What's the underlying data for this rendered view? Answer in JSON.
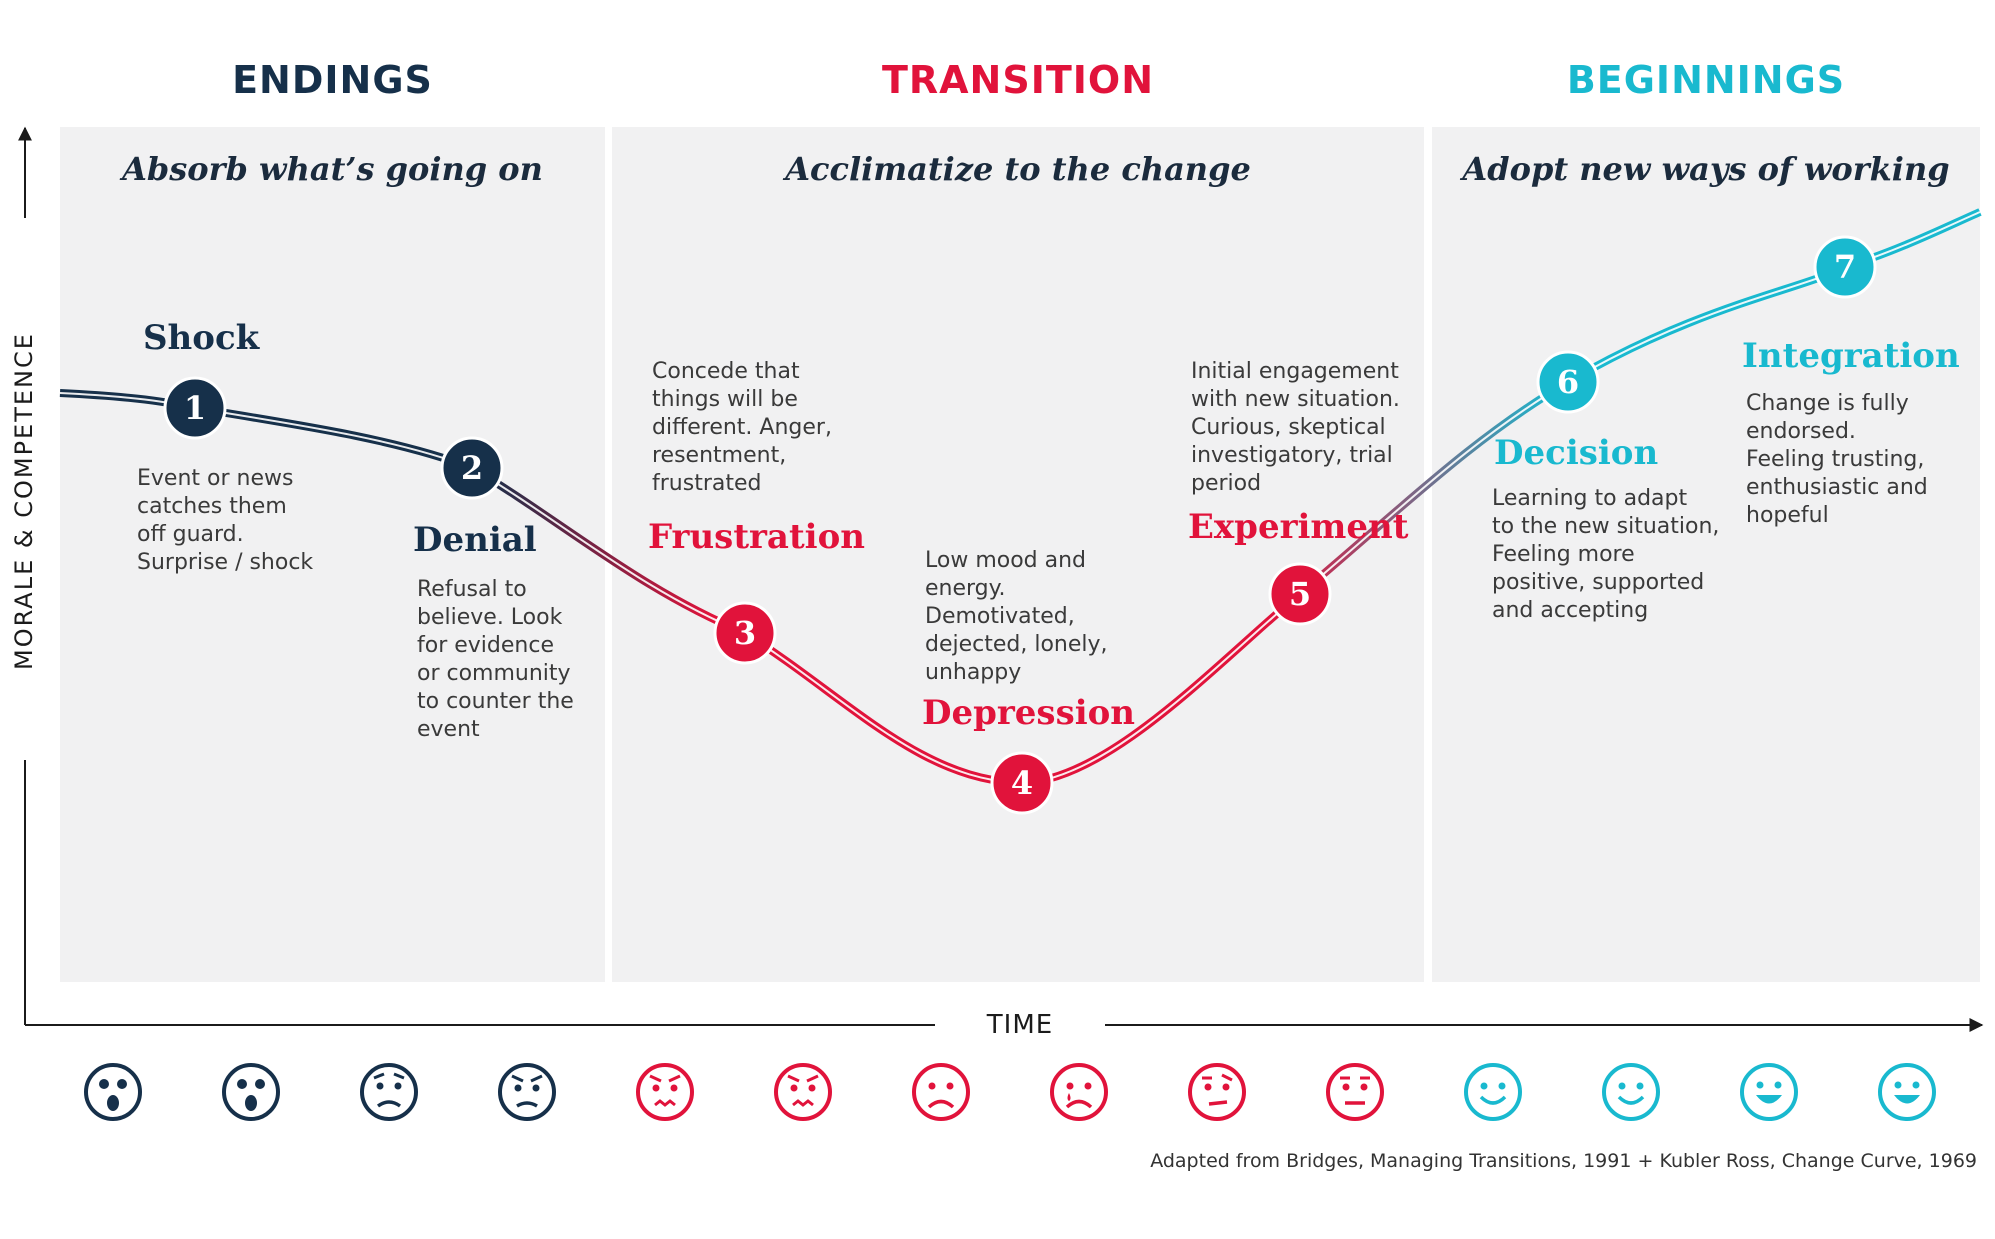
{
  "phases": [
    {
      "title": "ENDINGS",
      "subtitle": "Absorb what’s going on",
      "color": "#16304a"
    },
    {
      "title": "TRANSITION",
      "subtitle": "Acclimatize to the change",
      "color": "#e1133b"
    },
    {
      "title": "BEGINNINGS",
      "subtitle": "Adopt new ways of working",
      "color": "#19b9cf"
    }
  ],
  "axes": {
    "y_label": "MORALE & COMPETENCE",
    "x_label": "TIME"
  },
  "stages": [
    {
      "number": "1",
      "name": "Shock",
      "description": [
        "Event or news",
        "catches them",
        "off guard.",
        "Surprise / shock"
      ],
      "color": "#16304a"
    },
    {
      "number": "2",
      "name": "Denial",
      "description": [
        "Refusal to",
        "believe. Look",
        "for evidence",
        "or community",
        "to counter the",
        "event"
      ],
      "color": "#16304a"
    },
    {
      "number": "3",
      "name": "Frustration",
      "description": [
        "Concede that",
        "things will be",
        "different. Anger,",
        "resentment,",
        "frustrated"
      ],
      "color": "#e1133b"
    },
    {
      "number": "4",
      "name": "Depression",
      "description": [
        "Low mood and",
        "energy.",
        "Demotivated,",
        "dejected, lonely,",
        "unhappy"
      ],
      "color": "#e1133b"
    },
    {
      "number": "5",
      "name": "Experiment",
      "description": [
        "Initial engagement",
        "with new situation.",
        "Curious, skeptical",
        "investigatory, trial",
        "period"
      ],
      "color": "#e1133b"
    },
    {
      "number": "6",
      "name": "Decision",
      "description": [
        "Learning to adapt",
        "to the new situation,",
        "Feeling more",
        "positive, supported",
        "and accepting"
      ],
      "color": "#19b9cf"
    },
    {
      "number": "7",
      "name": "Integration",
      "description": [
        "Change is fully",
        "endorsed.",
        "Feeling trusting,",
        "enthusiastic and",
        "hopeful"
      ],
      "color": "#19b9cf"
    }
  ],
  "faces": [
    {
      "icon": "shocked-face-icon",
      "color": "#16304a"
    },
    {
      "icon": "shocked-face-icon",
      "color": "#16304a"
    },
    {
      "icon": "worried-face-icon",
      "color": "#16304a"
    },
    {
      "icon": "annoyed-face-icon",
      "color": "#16304a"
    },
    {
      "icon": "angry-face-icon",
      "color": "#e1133b"
    },
    {
      "icon": "angry-face-icon",
      "color": "#e1133b"
    },
    {
      "icon": "sad-face-icon",
      "color": "#e1133b"
    },
    {
      "icon": "crying-face-icon",
      "color": "#e1133b"
    },
    {
      "icon": "skeptical-face-icon",
      "color": "#e1133b"
    },
    {
      "icon": "neutral-face-icon",
      "color": "#e1133b"
    },
    {
      "icon": "smiling-face-icon",
      "color": "#19b9cf"
    },
    {
      "icon": "smiling-face-icon",
      "color": "#19b9cf"
    },
    {
      "icon": "happy-face-icon",
      "color": "#19b9cf"
    },
    {
      "icon": "happy-face-icon",
      "color": "#19b9cf"
    }
  ],
  "source_note": "Adapted from Bridges, Managing Transitions, 1991 + Kubler Ross, Change Curve, 1969"
}
